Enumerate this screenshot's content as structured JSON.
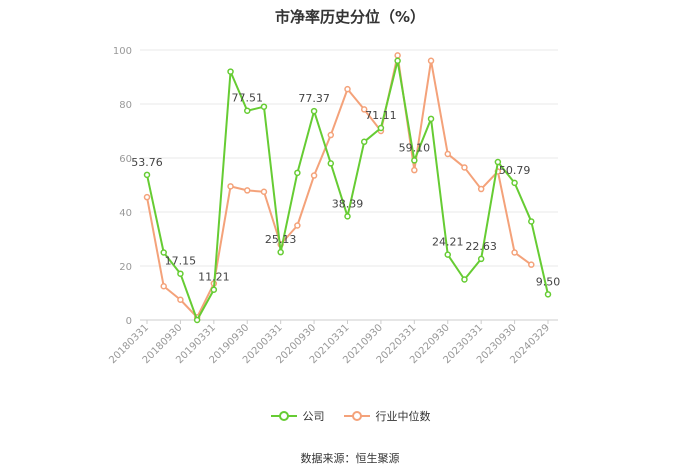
{
  "title": "市净率历史分位（%）",
  "source": "数据来源：恒生聚源",
  "colors": {
    "company": "#66CC33",
    "industry": "#F4A27A",
    "grid": "#E8E8E8",
    "axis": "#CCCCCC"
  },
  "chart_data": {
    "type": "line",
    "title": "市净率历史分位（%）",
    "xlabel": "",
    "ylabel": "",
    "ylim": [
      0,
      100
    ],
    "yticks": [
      0,
      20,
      40,
      60,
      80,
      100
    ],
    "grid": true,
    "legend_position": "bottom",
    "x": [
      "20180331",
      "20180630",
      "20180930",
      "20181231",
      "20190331",
      "20190630",
      "20190930",
      "20191231",
      "20200331",
      "20200630",
      "20200930",
      "20201231",
      "20210331",
      "20210630",
      "20210930",
      "20211231",
      "20220331",
      "20220630",
      "20220930",
      "20221231",
      "20230331",
      "20230630",
      "20230930",
      "20231231",
      "20240329"
    ],
    "tick_labels": [
      "20180331",
      "20180930",
      "20190331",
      "20190930",
      "20200331",
      "20200930",
      "20210331",
      "20210930",
      "20220331",
      "20220930",
      "20230331",
      "20230930",
      "20240329"
    ],
    "series": [
      {
        "name": "公司",
        "values": [
          53.76,
          25,
          17.15,
          0,
          11.21,
          92,
          77.51,
          79,
          25.13,
          54.5,
          77.37,
          58,
          38.39,
          66,
          71.11,
          96,
          59.1,
          74.5,
          24.21,
          15,
          22.63,
          58.5,
          50.79,
          36.5,
          9.5
        ]
      },
      {
        "name": "行业中位数",
        "values": [
          45.5,
          12.5,
          7.5,
          1,
          13.5,
          49.5,
          48,
          47.5,
          28,
          35,
          53.5,
          68.5,
          85.5,
          78,
          70,
          98,
          55.5,
          96,
          61.5,
          56.5,
          48.5,
          55,
          25,
          20.5,
          null
        ]
      }
    ],
    "data_labels": [
      {
        "series": "公司",
        "index": 0,
        "text": "53.76"
      },
      {
        "series": "公司",
        "index": 2,
        "text": "17.15"
      },
      {
        "series": "公司",
        "index": 4,
        "text": "11.21"
      },
      {
        "series": "公司",
        "index": 6,
        "text": "77.51"
      },
      {
        "series": "公司",
        "index": 8,
        "text": "25.13"
      },
      {
        "series": "公司",
        "index": 10,
        "text": "77.37"
      },
      {
        "series": "公司",
        "index": 12,
        "text": "38.39"
      },
      {
        "series": "公司",
        "index": 14,
        "text": "71.11"
      },
      {
        "series": "公司",
        "index": 16,
        "text": "59.10"
      },
      {
        "series": "公司",
        "index": 18,
        "text": "24.21"
      },
      {
        "series": "公司",
        "index": 20,
        "text": "22.63"
      },
      {
        "series": "公司",
        "index": 22,
        "text": "50.79"
      },
      {
        "series": "公司",
        "index": 24,
        "text": "9.50"
      }
    ]
  }
}
